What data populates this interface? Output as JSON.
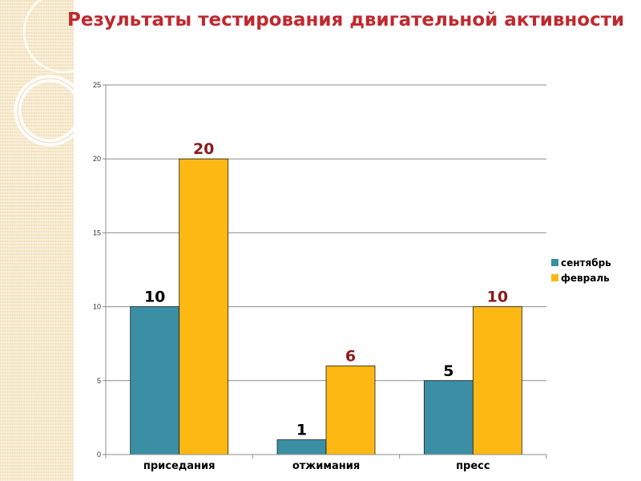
{
  "title": "Результаты тестирования двигательной активности",
  "chart_data": {
    "type": "bar",
    "categories": [
      "приседания",
      "отжимания",
      "пресс"
    ],
    "series": [
      {
        "name": "сентябрь",
        "values": [
          10,
          1,
          5
        ],
        "color": "#3a8fa5",
        "label_color": "#000000"
      },
      {
        "name": "февраль",
        "values": [
          20,
          6,
          10
        ],
        "color": "#fdb813",
        "label_color": "#8b1a1a"
      }
    ],
    "ylim": [
      0,
      25
    ],
    "yticks": [
      0,
      5,
      10,
      15,
      20,
      25
    ],
    "grid": true,
    "legend_position": "right"
  }
}
